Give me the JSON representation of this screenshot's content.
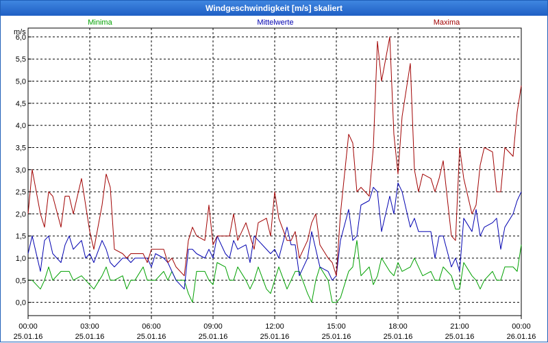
{
  "window": {
    "title": "Windgeschwindigkeit [m/s] skaliert"
  },
  "colors": {
    "minima": "#00a000",
    "mittelwerte": "#0000b0",
    "maxima": "#a00000",
    "grid": "#000000",
    "titlebar": "#2a6fd6"
  },
  "chart_data": {
    "type": "line",
    "title": "Windgeschwindigkeit [m/s] skaliert",
    "ylabel": "m/s",
    "xlabel": "",
    "ylim": [
      -0.3,
      6.2
    ],
    "yticks": [
      0.0,
      0.5,
      1.0,
      1.5,
      2.0,
      2.5,
      3.0,
      3.5,
      4.0,
      4.5,
      5.0,
      5.5,
      6.0
    ],
    "ytick_labels": [
      "0,0",
      "0,5",
      "1,0",
      "1,5",
      "2,0",
      "2,5",
      "3,0",
      "3,5",
      "4,0",
      "4,5",
      "5,0",
      "5,5",
      "6,0"
    ],
    "xlim": [
      "25.01.16 00:00",
      "26.01.16 00:00"
    ],
    "xticks": [
      {
        "time": "00:00",
        "date": "25.01.16"
      },
      {
        "time": "03:00",
        "date": "25.01.16"
      },
      {
        "time": "06:00",
        "date": "25.01.16"
      },
      {
        "time": "09:00",
        "date": "25.01.16"
      },
      {
        "time": "12:00",
        "date": "25.01.16"
      },
      {
        "time": "15:00",
        "date": "25.01.16"
      },
      {
        "time": "18:00",
        "date": "25.01.16"
      },
      {
        "time": "21:00",
        "date": "25.01.16"
      },
      {
        "time": "00:00",
        "date": "26.01.16"
      }
    ],
    "grid": true,
    "legend_position": "top",
    "x_hours": [
      0,
      0.2,
      0.6,
      0.8,
      1,
      1.2,
      1.6,
      1.8,
      2,
      2.2,
      2.6,
      2.8,
      3,
      3.2,
      3.6,
      3.8,
      4,
      4.2,
      4.6,
      4.8,
      5,
      5.2,
      5.6,
      5.8,
      6,
      6.2,
      6.6,
      6.8,
      7,
      7.2,
      7.6,
      7.8,
      8,
      8.2,
      8.6,
      8.8,
      9,
      9.2,
      9.6,
      9.8,
      10,
      10.2,
      10.6,
      10.8,
      11,
      11.2,
      11.6,
      11.8,
      12,
      12.2,
      12.6,
      12.8,
      13,
      13.2,
      13.6,
      13.8,
      14,
      14.2,
      14.6,
      14.8,
      15,
      15.2,
      15.6,
      15.8,
      16,
      16.2,
      16.6,
      16.8,
      17,
      17.2,
      17.6,
      17.8,
      18,
      18.2,
      18.6,
      18.8,
      19,
      19.2,
      19.6,
      19.8,
      20,
      20.2,
      20.6,
      20.8,
      21,
      21.2,
      21.6,
      21.8,
      22,
      22.2,
      22.6,
      22.8,
      23,
      23.2,
      23.6,
      23.8,
      24
    ],
    "series": [
      {
        "name": "Minima",
        "values": [
          0.5,
          0.5,
          0.3,
          0.5,
          0.8,
          0.5,
          0.7,
          0.7,
          0.7,
          0.5,
          0.6,
          0.5,
          0.4,
          0.3,
          0.6,
          0.8,
          0.5,
          0.5,
          0.6,
          0.3,
          0.5,
          0.5,
          0.8,
          0.5,
          0.5,
          0.5,
          0.7,
          0.5,
          0.7,
          0.5,
          0.5,
          0.2,
          0,
          0.7,
          0.7,
          0.5,
          0.4,
          0.9,
          0.8,
          0.5,
          0.5,
          0.8,
          0.5,
          0.3,
          0.5,
          0.8,
          0.3,
          0.2,
          0.5,
          0.8,
          0.3,
          0.5,
          0.7,
          0.7,
          0.2,
          0,
          0.5,
          0.8,
          0.5,
          0,
          0,
          0.1,
          0.7,
          0.8,
          1.4,
          0.6,
          0.8,
          0.4,
          0.6,
          1.0,
          0.7,
          0.6,
          0.9,
          0.7,
          0.8,
          1.0,
          0.8,
          0.6,
          0.7,
          0.5,
          0.5,
          0.8,
          0.6,
          0.3,
          0.3,
          0.9,
          0.6,
          0.5,
          0.3,
          0.5,
          0.7,
          0.5,
          0.5,
          0.8,
          0.8,
          0.7,
          1.3
        ]
      },
      {
        "name": "Mittelwerte",
        "values": [
          1.1,
          1.5,
          0.7,
          1.4,
          1.5,
          1.1,
          0.9,
          1.3,
          1.5,
          1.2,
          1.4,
          1.0,
          1.1,
          0.9,
          1.4,
          1.2,
          0.9,
          0.8,
          1.0,
          1.0,
          0.9,
          1.0,
          1.0,
          1.0,
          0.8,
          1.1,
          1.0,
          0.9,
          0.7,
          0.5,
          0.3,
          1.2,
          1.2,
          1.1,
          1.0,
          1.2,
          1.0,
          1.5,
          1.1,
          1.0,
          1.4,
          1.2,
          1.3,
          0.9,
          1.5,
          1.4,
          1.2,
          1.1,
          1.2,
          1.0,
          1.7,
          1.3,
          1.3,
          0.6,
          1.0,
          1.6,
          1.2,
          0.8,
          0.7,
          0.5,
          0.6,
          1.4,
          2.1,
          1.4,
          1.5,
          2.2,
          2.3,
          2.6,
          2.5,
          1.6,
          2.4,
          2.0,
          2.7,
          2.5,
          1.7,
          1.9,
          1.6,
          1.6,
          1.6,
          1.0,
          1.5,
          1.5,
          0.8,
          1.0,
          0.7,
          1.9,
          1.6,
          2.1,
          1.5,
          1.7,
          1.8,
          1.9,
          1.2,
          1.7,
          2.0,
          2.3,
          2.5
        ]
      },
      {
        "name": "Maxima",
        "values": [
          2.0,
          3.0,
          2.0,
          1.7,
          2.5,
          2.4,
          1.7,
          2.4,
          2.4,
          2.0,
          2.8,
          2.2,
          1.6,
          1.2,
          2.2,
          2.9,
          2.6,
          1.2,
          1.1,
          1.0,
          1.1,
          1.1,
          1.1,
          0.9,
          1.2,
          1.2,
          1.2,
          0.9,
          1.0,
          0.8,
          0.6,
          1.4,
          1.7,
          1.5,
          1.4,
          2.2,
          1.3,
          1.5,
          1.5,
          1.5,
          2.0,
          1.4,
          1.8,
          1.5,
          1.2,
          1.8,
          1.9,
          1.5,
          2.5,
          1.9,
          1.4,
          1.4,
          1.6,
          1.0,
          1.4,
          1.8,
          2.0,
          1.3,
          1.0,
          0.9,
          0.6,
          2.0,
          3.8,
          3.6,
          2.5,
          2.6,
          2.4,
          3.5,
          5.9,
          5.0,
          6.0,
          3.8,
          2.9,
          4.2,
          5.4,
          3.0,
          2.5,
          2.9,
          2.8,
          2.5,
          2.8,
          3.2,
          1.5,
          1.4,
          3.5,
          2.8,
          2.0,
          2.2,
          3.1,
          3.5,
          3.4,
          2.5,
          2.5,
          3.5,
          3.3,
          4.3,
          4.9
        ]
      }
    ]
  }
}
